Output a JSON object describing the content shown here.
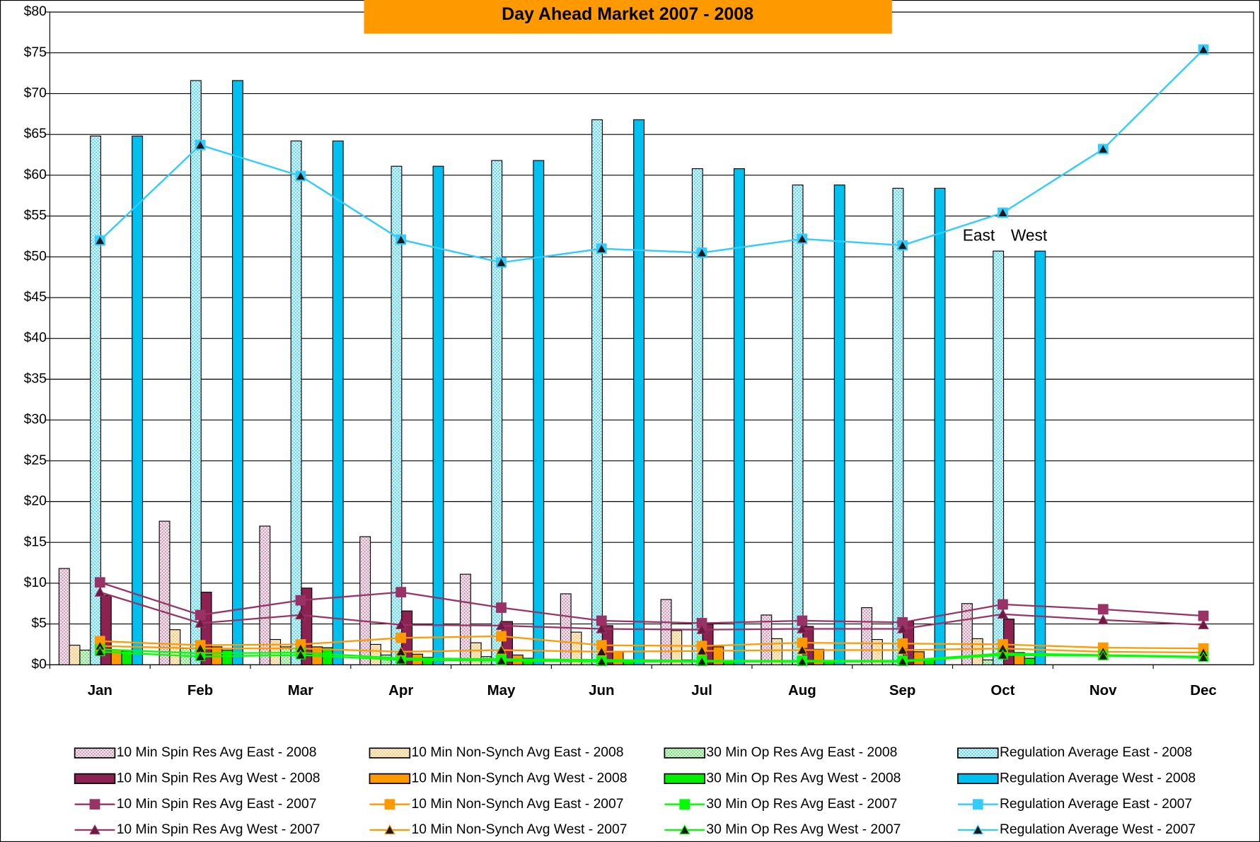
{
  "chart_data": {
    "type": "bar",
    "title": "Day Ahead Market  2007 - 2008",
    "title_color": "#ff9900",
    "categories": [
      "Jan",
      "Feb",
      "Mar",
      "Apr",
      "May",
      "Jun",
      "Jul",
      "Aug",
      "Sep",
      "Oct",
      "Nov",
      "Dec"
    ],
    "ylim": [
      0,
      80
    ],
    "yticks": [
      {
        "value": 0,
        "label": "$0"
      },
      {
        "value": 5,
        "label": "$5"
      },
      {
        "value": 10,
        "label": "$10"
      },
      {
        "value": 15,
        "label": "$15"
      },
      {
        "value": 20,
        "label": "$20"
      },
      {
        "value": 25,
        "label": "$25"
      },
      {
        "value": 30,
        "label": "$30"
      },
      {
        "value": 35,
        "label": "$35"
      },
      {
        "value": 40,
        "label": "$40"
      },
      {
        "value": 45,
        "label": "$45"
      },
      {
        "value": 50,
        "label": "$50"
      },
      {
        "value": 55,
        "label": "$55"
      },
      {
        "value": 60,
        "label": "$60"
      },
      {
        "value": 65,
        "label": "$65"
      },
      {
        "value": 70,
        "label": "$70"
      },
      {
        "value": 75,
        "label": "$75"
      },
      {
        "value": 80,
        "label": "$80"
      }
    ],
    "grid": true,
    "legend": "bottom",
    "annotations": [
      "East",
      "West"
    ],
    "series": [
      {
        "name": "10 Min Spin Res Avg East - 2008",
        "kind": "bar",
        "hatched": true,
        "color": "#cc8fb0",
        "values": [
          11.8,
          17.6,
          17.0,
          15.7,
          11.1,
          8.7,
          8.0,
          6.1,
          7.0,
          7.5,
          null,
          null
        ]
      },
      {
        "name": "10 Min Non-Synch Avg East - 2008",
        "kind": "bar",
        "hatched": true,
        "color": "#ffc266",
        "values": [
          2.4,
          4.3,
          3.1,
          2.5,
          2.7,
          4.0,
          4.2,
          3.2,
          3.1,
          3.2,
          null,
          null
        ]
      },
      {
        "name": "30 Min Op Res Avg East - 2008",
        "kind": "bar",
        "hatched": true,
        "color": "#66e066",
        "values": [
          1.8,
          2.0,
          2.2,
          1.2,
          1.0,
          0.6,
          0.6,
          0.5,
          0.5,
          0.6,
          null,
          null
        ]
      },
      {
        "name": "Regulation Average East - 2008",
        "kind": "bar",
        "hatched": true,
        "color": "#4fd3f5",
        "values": [
          64.8,
          71.6,
          64.2,
          61.1,
          61.8,
          66.8,
          60.8,
          58.8,
          58.4,
          50.7,
          null,
          null
        ]
      },
      {
        "name": "10 Min Spin Res Avg West - 2008",
        "kind": "bar",
        "hatched": false,
        "color": "#8b2252",
        "values": [
          8.5,
          8.9,
          9.4,
          6.6,
          5.3,
          4.8,
          5.0,
          4.7,
          5.3,
          5.6,
          null,
          null
        ]
      },
      {
        "name": "10 Min Non-Synch Avg West - 2008",
        "kind": "bar",
        "hatched": false,
        "color": "#ff9900",
        "values": [
          1.8,
          2.2,
          2.2,
          1.3,
          1.2,
          1.6,
          2.2,
          1.9,
          1.6,
          1.5,
          null,
          null
        ]
      },
      {
        "name": "30 Min Op Res Avg West - 2008",
        "kind": "bar",
        "hatched": false,
        "color": "#00ee00",
        "values": [
          1.7,
          1.8,
          2.1,
          0.9,
          0.8,
          0.5,
          0.5,
          0.5,
          0.6,
          0.8,
          null,
          null
        ]
      },
      {
        "name": "Regulation Average West - 2008",
        "kind": "bar",
        "hatched": false,
        "color": "#00c0f0",
        "values": [
          64.8,
          71.6,
          64.2,
          61.1,
          61.8,
          66.8,
          60.8,
          58.8,
          58.4,
          50.7,
          null,
          null
        ]
      },
      {
        "name": "10 Min Spin Res Avg East - 2007",
        "kind": "line",
        "marker": "square",
        "color": "#993366",
        "marker_color": "#993366",
        "values": [
          10.1,
          6.1,
          7.9,
          8.9,
          7.0,
          5.4,
          5.1,
          5.4,
          5.2,
          7.4,
          6.8,
          6.0
        ]
      },
      {
        "name": "10 Min Non-Synch Avg East - 2007",
        "kind": "line",
        "marker": "square",
        "color": "#ff9900",
        "marker_color": "#ff9900",
        "values": [
          2.9,
          2.4,
          2.5,
          3.3,
          3.5,
          2.4,
          2.3,
          2.7,
          2.6,
          2.5,
          2.1,
          2.0
        ]
      },
      {
        "name": "30 Min Op Res Avg East - 2007",
        "kind": "line",
        "marker": "square",
        "color": "#00ff00",
        "marker_color": "#00ff00",
        "values": [
          1.9,
          1.4,
          1.5,
          0.8,
          0.7,
          0.6,
          0.5,
          0.5,
          0.5,
          1.4,
          1.2,
          1.0
        ]
      },
      {
        "name": "Regulation Average East - 2007",
        "kind": "line",
        "marker": "square",
        "color": "#33ccff",
        "marker_color": "#33ccff",
        "values": [
          52.0,
          63.7,
          59.9,
          52.1,
          49.3,
          51.0,
          50.5,
          52.2,
          51.4,
          55.4,
          63.2,
          75.4
        ]
      },
      {
        "name": "10 Min Spin Res Avg West - 2007",
        "kind": "line",
        "marker": "triangle",
        "color": "#993366",
        "marker_color": "#6b1a40",
        "values": [
          8.9,
          5.1,
          6.1,
          4.9,
          4.8,
          4.4,
          4.3,
          4.4,
          4.4,
          6.2,
          5.5,
          4.9
        ]
      },
      {
        "name": "10 Min Non-Synch Avg West - 2007",
        "kind": "line",
        "marker": "triangle",
        "color": "#ff9900",
        "marker_color": "#1a1a1a",
        "values": [
          2.3,
          2.0,
          2.0,
          1.6,
          1.8,
          1.6,
          1.7,
          1.8,
          1.8,
          2.0,
          1.6,
          1.5
        ]
      },
      {
        "name": "30 Min Op Res Avg West - 2007",
        "kind": "line",
        "marker": "triangle",
        "color": "#00ff00",
        "marker_color": "#1a1a1a",
        "values": [
          1.6,
          1.0,
          1.2,
          0.6,
          0.5,
          0.4,
          0.4,
          0.4,
          0.4,
          1.2,
          1.1,
          0.9
        ]
      },
      {
        "name": "Regulation Average West - 2007",
        "kind": "line",
        "marker": "triangle",
        "color": "#33ccff",
        "marker_color": "#1a1a1a",
        "values": [
          52.0,
          63.7,
          59.9,
          52.1,
          49.3,
          51.0,
          50.5,
          52.2,
          51.4,
          55.4,
          63.2,
          75.4
        ]
      }
    ]
  }
}
